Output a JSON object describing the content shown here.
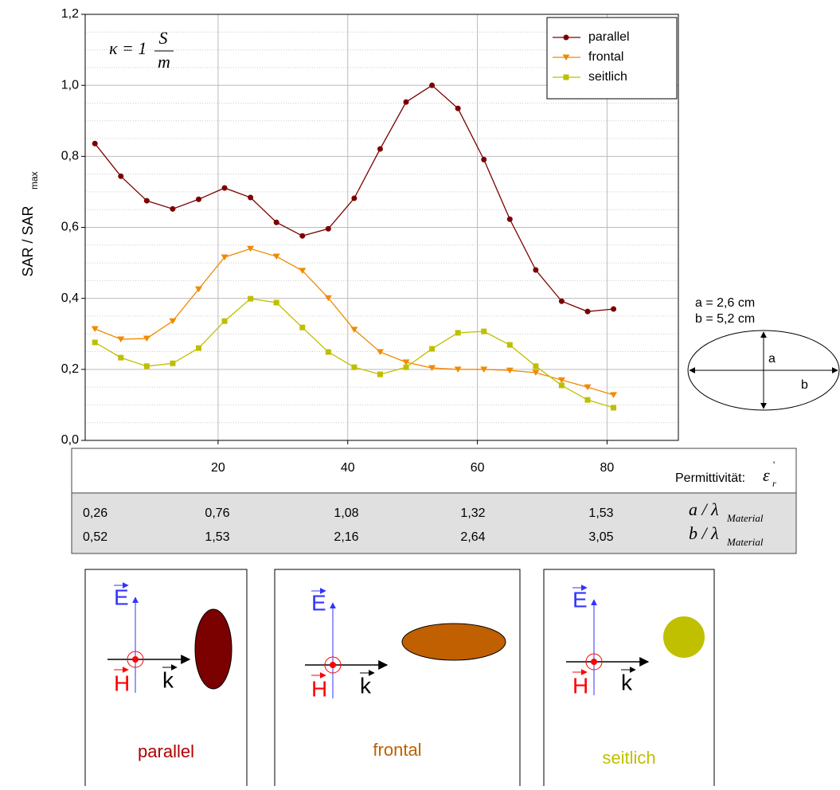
{
  "chart_data": {
    "type": "line",
    "ylabel": "SAR / SAR",
    "ylabel_sub": "max",
    "formula": {
      "lhs": "κ = 1",
      "num": "S",
      "den": "m"
    },
    "x": [
      1,
      5,
      9,
      13,
      17,
      21,
      25,
      29,
      33,
      37,
      41,
      45,
      49,
      53,
      57,
      61,
      65,
      69,
      73,
      77,
      81
    ],
    "series": [
      {
        "name": "parallel",
        "color": "#7b0000",
        "marker": "circle",
        "values": [
          0.836,
          0.744,
          0.675,
          0.652,
          0.679,
          0.711,
          0.684,
          0.614,
          0.576,
          0.596,
          0.682,
          0.821,
          0.953,
          1.0,
          0.935,
          0.791,
          0.623,
          0.48,
          0.392,
          0.363,
          0.37
        ]
      },
      {
        "name": "frontal",
        "color": "#f08a00",
        "marker": "triangle",
        "values": [
          0.314,
          0.285,
          0.287,
          0.336,
          0.426,
          0.516,
          0.54,
          0.518,
          0.478,
          0.401,
          0.312,
          0.249,
          0.22,
          0.204,
          0.2,
          0.2,
          0.197,
          0.191,
          0.17,
          0.15,
          0.128
        ]
      },
      {
        "name": "seitlich",
        "color": "#bfbf00",
        "marker": "square",
        "values": [
          0.276,
          0.233,
          0.209,
          0.217,
          0.26,
          0.336,
          0.399,
          0.388,
          0.318,
          0.249,
          0.206,
          0.186,
          0.206,
          0.258,
          0.303,
          0.307,
          0.269,
          0.209,
          0.155,
          0.114,
          0.092
        ]
      }
    ],
    "xlim": [
      -0.5,
      91
    ],
    "ylim": [
      0,
      1.2
    ],
    "xticks": [
      20,
      40,
      60,
      80
    ],
    "yticks": [
      {
        "value": 0,
        "label": "0,0"
      },
      {
        "value": 0.2,
        "label": "0,2"
      },
      {
        "value": 0.4,
        "label": "0,4"
      },
      {
        "value": 0.6,
        "label": "0,6"
      },
      {
        "value": 0.8,
        "label": "0,8"
      },
      {
        "value": 1.0,
        "label": "1,0"
      },
      {
        "value": 1.2,
        "label": "1,2"
      }
    ],
    "yminor": [
      0.05,
      0.1,
      0.15,
      0.25,
      0.3,
      0.35,
      0.45,
      0.5,
      0.55,
      0.65,
      0.7,
      0.75,
      0.85,
      0.9,
      0.95,
      1.05,
      1.1,
      1.15
    ],
    "grid": true,
    "legend": "upper right"
  },
  "table": {
    "xlabel": "Permittivität:",
    "symbol": "ε",
    "symbol_sub": "r",
    "symbol_sup": "'",
    "rows": [
      {
        "cells": [
          "0,26",
          "0,76",
          "1,08",
          "1,32",
          "1,53"
        ],
        "label": "a / λ",
        "label_sub": "Material"
      },
      {
        "cells": [
          "0,52",
          "1,53",
          "2,16",
          "2,64",
          "3,05"
        ],
        "label": "b / λ",
        "label_sub": "Material"
      }
    ]
  },
  "ellipse_note": {
    "a_text": "a = 2,6 cm",
    "b_text": "b = 5,2 cm",
    "a": "a",
    "b": "b"
  },
  "panels": [
    {
      "label": "parallel",
      "color": "#b00000",
      "E": "E",
      "H": "H",
      "k": "k"
    },
    {
      "label": "frontal",
      "color": "#c06000",
      "E": "E",
      "H": "H",
      "k": "k"
    },
    {
      "label": "seitlich",
      "color": "#c0c000",
      "E": "E",
      "H": "H",
      "k": "k"
    }
  ]
}
